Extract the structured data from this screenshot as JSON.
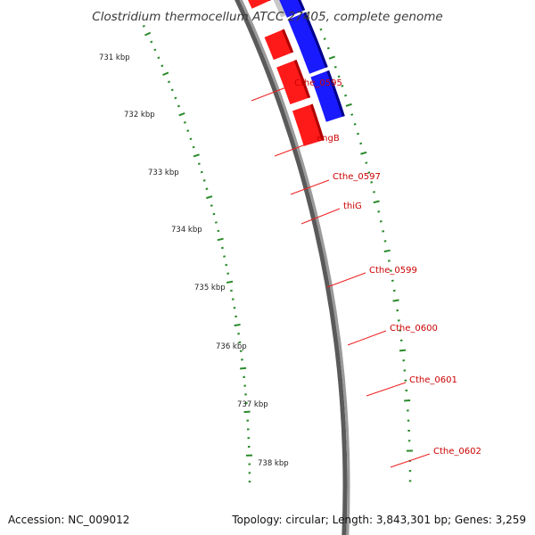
{
  "title": "Clostridium thermocellum ATCC 27405, complete genome",
  "footer": {
    "accession": "Accession: NC_009012",
    "summary": "Topology: circular; Length: 3,843,301 bp; Genes: 3,259"
  },
  "colors": {
    "forward_gene": "#ff1a1a",
    "reverse_gene": "#1a1aff",
    "other_feature": "#c8c8c8",
    "backbone": "#808080",
    "tick": "#2a8a2a",
    "label": "#cc0000",
    "leader_line": "#ee2020"
  },
  "scale_labels": [
    "731 kbp",
    "732 kbp",
    "733 kbp",
    "734 kbp",
    "735 kbp",
    "736 kbp",
    "737 kbp",
    "738 kbp"
  ],
  "genes": [
    {
      "label": "",
      "track": "forward"
    },
    {
      "label": "Cthe_0595",
      "track": "forward"
    },
    {
      "label": "engB",
      "track": "other"
    },
    {
      "label": "",
      "track": "forward"
    },
    {
      "label": "Cthe_0597",
      "track": "forward"
    },
    {
      "label": "thiG",
      "track": "reverse"
    },
    {
      "label": "",
      "track": "forward"
    },
    {
      "label": "Cthe_0599",
      "track": "other"
    },
    {
      "label": "",
      "track": "reverse"
    },
    {
      "label": "Cthe_0600",
      "track": "forward"
    },
    {
      "label": "",
      "track": "reverse"
    },
    {
      "label": "Cthe_0601",
      "track": "forward"
    },
    {
      "label": "Cthe_0602",
      "track": "reverse"
    },
    {
      "label": "",
      "track": "forward"
    }
  ]
}
